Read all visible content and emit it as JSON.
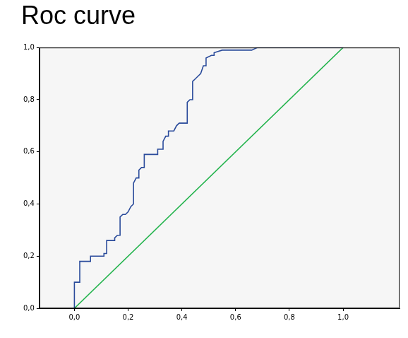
{
  "chart_data": {
    "type": "line",
    "title": "Roc curve",
    "series": [
      {
        "color": "#2a4b9b",
        "x": [
          0,
          0,
          0.02,
          0.02,
          0.06,
          0.06,
          0.11,
          0.11,
          0.12,
          0.12,
          0.15,
          0.15,
          0.16,
          0.17,
          0.17,
          0.18,
          0.19,
          0.2,
          0.21,
          0.22,
          0.22,
          0.23,
          0.24,
          0.24,
          0.25,
          0.26,
          0.26,
          0.31,
          0.31,
          0.33,
          0.33,
          0.34,
          0.35,
          0.35,
          0.37,
          0.38,
          0.39,
          0.42,
          0.42,
          0.43,
          0.44,
          0.44,
          0.45,
          0.46,
          0.47,
          0.48,
          0.49,
          0.49,
          0.51,
          0.52,
          0.52,
          0.55,
          0.66,
          0.68,
          1
        ],
        "values": [
          0,
          0.1,
          0.1,
          0.18,
          0.18,
          0.2,
          0.2,
          0.21,
          0.21,
          0.26,
          0.26,
          0.27,
          0.28,
          0.28,
          0.35,
          0.36,
          0.36,
          0.37,
          0.39,
          0.4,
          0.48,
          0.5,
          0.5,
          0.53,
          0.54,
          0.54,
          0.59,
          0.59,
          0.61,
          0.61,
          0.64,
          0.66,
          0.66,
          0.68,
          0.68,
          0.7,
          0.71,
          0.71,
          0.79,
          0.8,
          0.8,
          0.87,
          0.88,
          0.89,
          0.9,
          0.93,
          0.93,
          0.96,
          0.97,
          0.97,
          0.98,
          0.99,
          0.99,
          1,
          1
        ]
      },
      {
        "color": "#22b34c",
        "x": [
          0,
          1
        ],
        "values": [
          0,
          1
        ]
      }
    ],
    "xlim": [
      -0.13,
      1.21
    ],
    "xticks": [
      {
        "value": 0,
        "label": "0,0"
      },
      {
        "value": 0.2,
        "label": "0,2"
      },
      {
        "value": 0.4,
        "label": "0,4"
      },
      {
        "value": 0.6,
        "label": "0,6"
      },
      {
        "value": 0.8,
        "label": "0,8"
      },
      {
        "value": 1,
        "label": "1,0"
      }
    ],
    "ylim": [
      0,
      1
    ],
    "yticks": [
      {
        "value": 0,
        "label": "0,0"
      },
      {
        "value": 0.2,
        "label": "0,2"
      },
      {
        "value": 0.4,
        "label": "0,4"
      },
      {
        "value": 0.6,
        "label": "0,6"
      },
      {
        "value": 0.8,
        "label": "0,8"
      },
      {
        "value": 1,
        "label": "1,0"
      }
    ],
    "grid": false
  }
}
